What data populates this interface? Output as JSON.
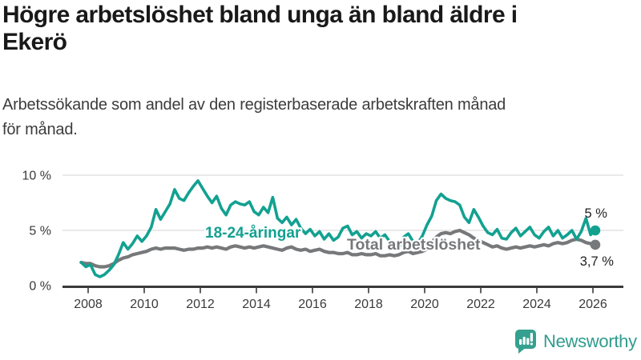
{
  "header": {
    "title_lines": [
      "Högre arbetslöshet bland unga än bland äldre i",
      "Ekerö"
    ],
    "subtitle_lines": [
      "Arbetssökande som andel av den registerbaserade arbetskraften månad",
      "för månad."
    ]
  },
  "chart_data": {
    "type": "line",
    "title": "Högre arbetslöshet bland unga än bland äldre i Ekerö",
    "subtitle": "Arbetssökande som andel av den registerbaserade arbetskraften månad för månad.",
    "unit": "%",
    "grid": true,
    "ylim": [
      0,
      10.5
    ],
    "y_axis": {
      "labels": [
        "0 %",
        "5 %",
        "10 %"
      ],
      "values": [
        0,
        5,
        10
      ]
    },
    "x_axis": {
      "ticks": [
        2008,
        2010,
        2012,
        2014,
        2016,
        2018,
        2020,
        2022,
        2024,
        2026
      ]
    },
    "x_start_year": 2007.75,
    "x_step_years": 0.16667,
    "series": [
      {
        "name": "18-24-åringar",
        "color": "#12a191",
        "end_label": "5 %",
        "end_value": 5.0,
        "values": [
          2.1,
          1.7,
          1.9,
          1.0,
          0.8,
          1.0,
          1.4,
          1.9,
          2.8,
          3.9,
          3.3,
          3.8,
          4.5,
          4.0,
          4.5,
          5.3,
          6.9,
          6.0,
          6.7,
          7.4,
          8.7,
          7.9,
          7.7,
          8.4,
          9.0,
          9.5,
          8.8,
          8.1,
          7.5,
          8.1,
          7.0,
          6.4,
          7.3,
          7.6,
          7.4,
          7.3,
          7.6,
          6.7,
          6.4,
          7.1,
          6.6,
          8.0,
          6.1,
          5.7,
          6.2,
          5.5,
          6.0,
          5.2,
          4.7,
          5.1,
          4.5,
          4.9,
          4.2,
          4.7,
          4.1,
          4.4,
          5.2,
          5.4,
          4.6,
          4.9,
          4.3,
          4.7,
          4.5,
          4.9,
          4.3,
          4.6,
          4.0,
          3.8,
          3.3,
          4.4,
          4.7,
          4.0,
          3.8,
          4.5,
          5.5,
          6.3,
          7.7,
          8.3,
          7.9,
          7.7,
          7.6,
          7.3,
          6.2,
          5.7,
          6.9,
          6.2,
          5.4,
          4.8,
          4.6,
          5.1,
          4.3,
          4.2,
          4.8,
          5.2,
          4.5,
          4.9,
          5.3,
          4.6,
          4.3,
          4.9,
          5.3,
          4.5,
          5.0,
          4.3,
          4.6,
          5.0,
          4.2,
          4.9,
          6.1,
          4.6,
          5.0
        ]
      },
      {
        "name": "Total arbetslöshet",
        "color": "#77787a",
        "end_label": "3,7 %",
        "end_value": 3.7,
        "values": [
          2.1,
          2.0,
          2.0,
          1.8,
          1.7,
          1.7,
          1.8,
          2.0,
          2.3,
          2.5,
          2.6,
          2.8,
          2.9,
          3.0,
          3.1,
          3.3,
          3.4,
          3.3,
          3.4,
          3.4,
          3.4,
          3.3,
          3.2,
          3.3,
          3.3,
          3.4,
          3.4,
          3.5,
          3.4,
          3.5,
          3.4,
          3.3,
          3.5,
          3.6,
          3.5,
          3.4,
          3.5,
          3.4,
          3.5,
          3.6,
          3.5,
          3.4,
          3.3,
          3.2,
          3.4,
          3.5,
          3.3,
          3.2,
          3.3,
          3.1,
          3.2,
          3.3,
          3.1,
          3.0,
          3.0,
          2.9,
          2.9,
          3.0,
          2.8,
          2.8,
          2.9,
          2.8,
          2.8,
          2.9,
          2.7,
          2.7,
          2.8,
          2.7,
          2.8,
          3.0,
          3.1,
          2.9,
          3.0,
          3.1,
          3.3,
          3.9,
          4.4,
          4.7,
          4.8,
          4.7,
          4.9,
          5.0,
          4.8,
          4.6,
          4.3,
          4.1,
          3.9,
          3.7,
          3.5,
          3.6,
          3.4,
          3.3,
          3.4,
          3.5,
          3.4,
          3.5,
          3.6,
          3.5,
          3.6,
          3.7,
          3.6,
          3.8,
          3.9,
          3.8,
          3.9,
          4.1,
          4.2,
          4.1,
          3.9,
          3.8,
          3.7
        ]
      }
    ],
    "colors": {
      "axis_text": "#3a3a3a",
      "gridline": "#dcdcdc",
      "axis_line": "#3a3a3a",
      "annotation_text": "#1f1f1f"
    }
  },
  "footer": {
    "brand": "Newsworthy",
    "logo_icon": "bar-chart-speech-bubble-icon",
    "brand_color": "#2f9c8e"
  }
}
